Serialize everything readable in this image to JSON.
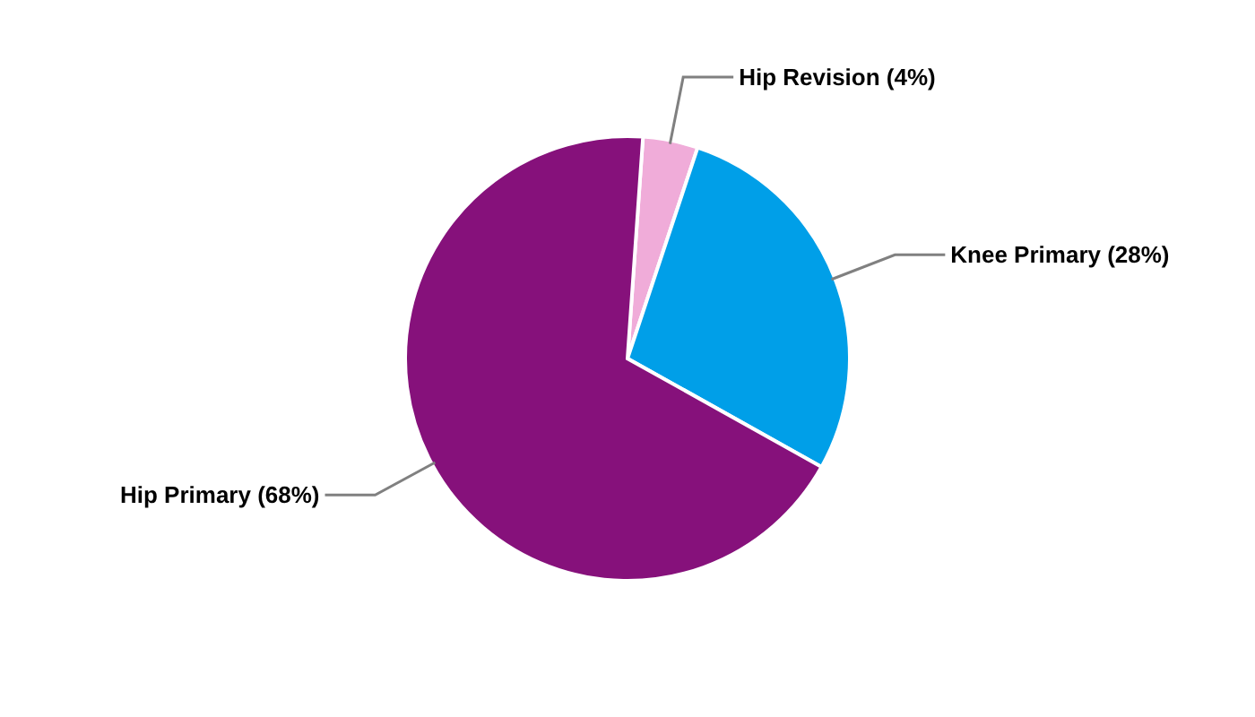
{
  "chart_data": {
    "type": "pie",
    "categories": [
      "Hip Revision (4%)",
      "Knee Primary (28%)",
      "Hip Primary (68%)"
    ],
    "values": [
      4,
      28,
      68
    ],
    "colors": [
      "#f0acd9",
      "#009fe8",
      "#86117b"
    ]
  }
}
